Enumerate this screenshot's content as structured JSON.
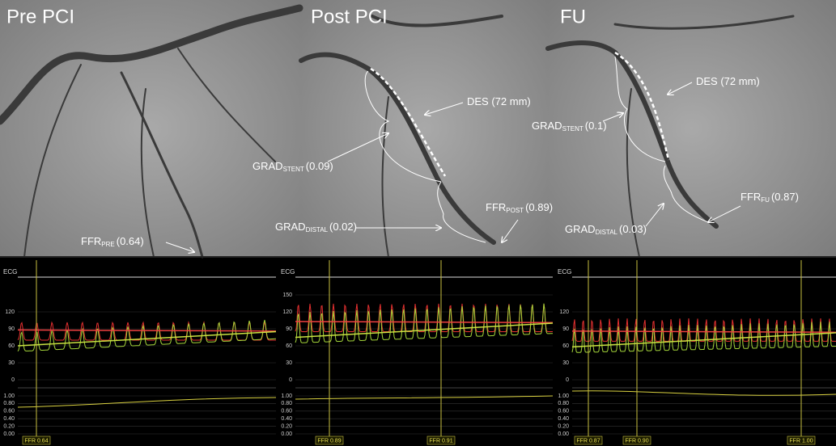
{
  "panels": [
    {
      "title": "Pre PCI",
      "annotations": [
        {
          "base": "FFR",
          "sub": "PRE",
          "text": "(0.64)"
        }
      ]
    },
    {
      "title": "Post PCI",
      "annotations": [
        {
          "base": "GRAD",
          "sub": "STENT",
          "text": "(0.09)"
        },
        {
          "base": "DES (72 mm)"
        },
        {
          "base": "GRAD",
          "sub": "DISTAL",
          "text": "(0.02)"
        },
        {
          "base": "FFR",
          "sub": "POST",
          "text": "(0.89)"
        }
      ]
    },
    {
      "title": "FU",
      "annotations": [
        {
          "base": "GRAD",
          "sub": "STENT",
          "text": "(0.1)"
        },
        {
          "base": "DES (72 mm)"
        },
        {
          "base": "FFR",
          "sub": "FU",
          "text": "(0.87)"
        },
        {
          "base": "GRAD",
          "sub": "DISTAL",
          "text": "(0.03)"
        }
      ]
    }
  ],
  "tracings": [
    {
      "ecg_label": "ECG",
      "pressure_ticks": [
        "120",
        "90",
        "60",
        "30",
        "0"
      ],
      "ffr_ticks": [
        "1.00",
        "0.80",
        "0.60",
        "0.40",
        "0.20",
        "0.00"
      ],
      "markers": [
        "FFR 0.64"
      ]
    },
    {
      "ecg_label": "ECG",
      "pressure_ticks": [
        "150",
        "120",
        "90",
        "60",
        "30",
        "0"
      ],
      "ffr_ticks": [
        "1.00",
        "0.80",
        "0.60",
        "0.40",
        "0.20",
        "0.00"
      ],
      "markers": [
        "FFR 0.89",
        "FFR 0.91"
      ]
    },
    {
      "ecg_label": "ECG",
      "pressure_ticks": [
        "120",
        "90",
        "60",
        "30",
        "0"
      ],
      "ffr_ticks": [
        "1.00",
        "0.80",
        "0.60",
        "0.40",
        "0.20",
        "0.00"
      ],
      "markers": [
        "FFR 0.87",
        "FFR 0.90",
        "FFR 1.00"
      ]
    }
  ]
}
